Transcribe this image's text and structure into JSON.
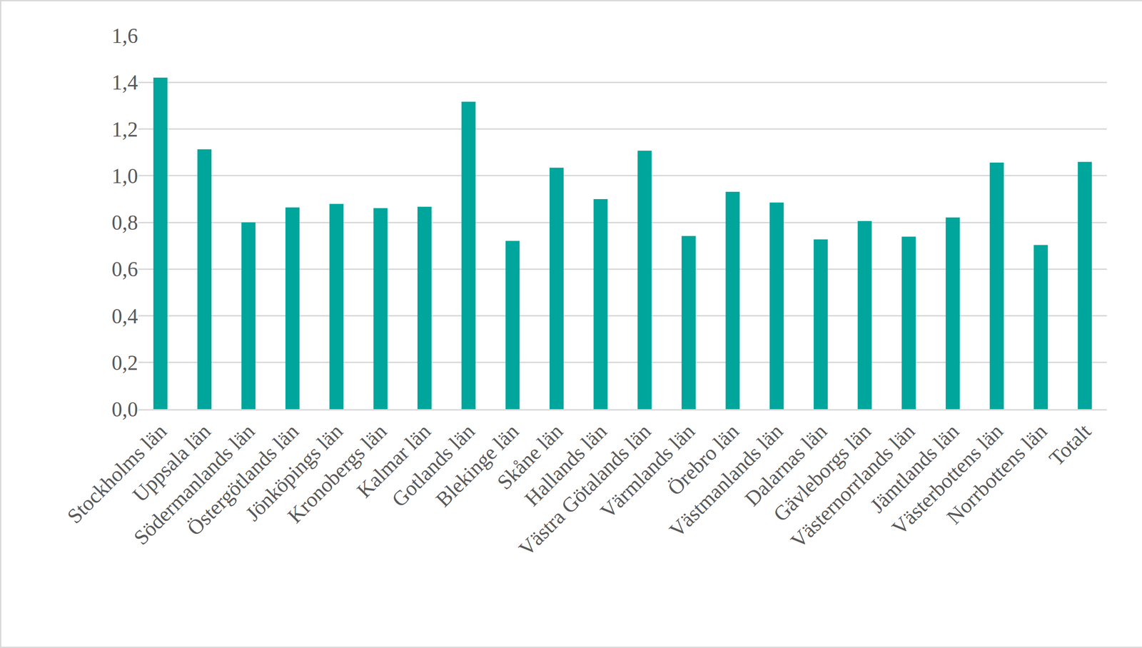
{
  "chart_data": {
    "type": "bar",
    "categories": [
      "Stockholms län",
      "Uppsala län",
      "Södermanlands län",
      "Östergötlands län",
      "Jönköpings län",
      "Kronobergs län",
      "Kalmar län",
      "Gotlands län",
      "Blekinge län",
      "Skåne län",
      "Hallands län",
      "Västra Götalands län",
      "Värmlands län",
      "Örebro län",
      "Västmanlands län",
      "Dalarnas län",
      "Gävleborgs län",
      "Västernorrlands län",
      "Jämtlands län",
      "Västerbottens län",
      "Norrbottens län",
      "Totalt"
    ],
    "values": [
      1.42,
      1.113,
      0.8,
      0.864,
      0.879,
      0.861,
      0.867,
      1.317,
      0.721,
      1.034,
      0.9,
      1.107,
      0.742,
      0.931,
      0.885,
      0.727,
      0.806,
      0.739,
      0.821,
      1.056,
      0.703,
      1.059
    ],
    "color": "#00a59b",
    "ylim": [
      0,
      1.6
    ],
    "yticks": [
      {
        "value": 0,
        "label": "0,0"
      },
      {
        "value": 0.2,
        "label": "0,2"
      },
      {
        "value": 0.4,
        "label": "0,4"
      },
      {
        "value": 0.6,
        "label": "0,6"
      },
      {
        "value": 0.8,
        "label": "0,8"
      },
      {
        "value": 1.0,
        "label": "1,0"
      },
      {
        "value": 1.2,
        "label": "1,2"
      },
      {
        "value": 1.4,
        "label": "1,4"
      },
      {
        "value": 1.6,
        "label": "1,6"
      }
    ],
    "grid": true
  }
}
